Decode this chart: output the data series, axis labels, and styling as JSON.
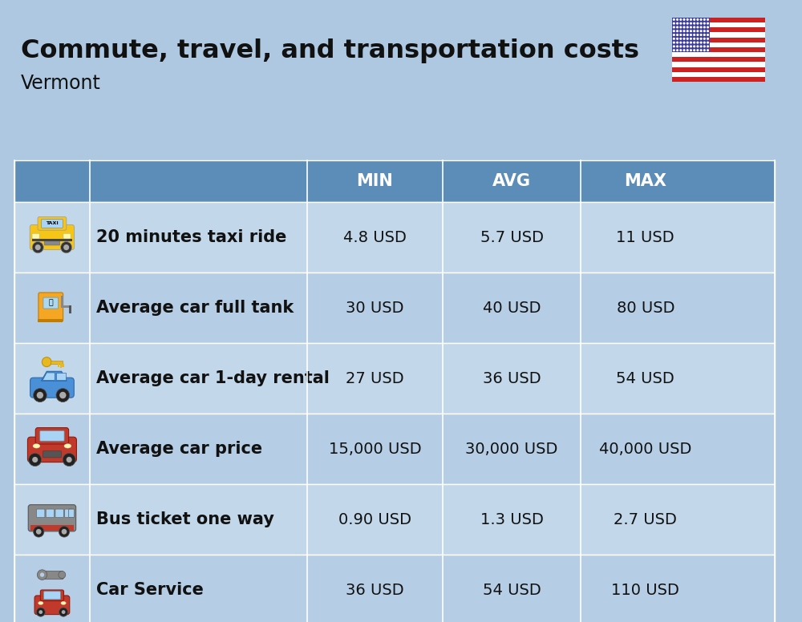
{
  "title": "Commute, travel, and transportation costs",
  "subtitle": "Vermont",
  "background_color": "#adc8e0",
  "header_bg_color": "#5b8db8",
  "header_text_color": "#ffffff",
  "row_bg_colors": [
    "#c2d8ea",
    "#b5cde5"
  ],
  "rows": [
    {
      "label": "20 minutes taxi ride",
      "min": "4.8 USD",
      "avg": "5.7 USD",
      "max": "11 USD"
    },
    {
      "label": "Average car full tank",
      "min": "30 USD",
      "avg": "40 USD",
      "max": "80 USD"
    },
    {
      "label": "Average car 1-day rental",
      "min": "27 USD",
      "avg": "36 USD",
      "max": "54 USD"
    },
    {
      "label": "Average car price",
      "min": "15,000 USD",
      "avg": "30,000 USD",
      "max": "40,000 USD"
    },
    {
      "label": "Bus ticket one way",
      "min": "0.90 USD",
      "avg": "1.3 USD",
      "max": "2.7 USD"
    },
    {
      "label": "Car Service",
      "min": "36 USD",
      "avg": "54 USD",
      "max": "110 USD"
    }
  ],
  "title_fontsize": 23,
  "subtitle_fontsize": 17,
  "header_fontsize": 15,
  "cell_fontsize": 14,
  "label_fontsize": 15
}
